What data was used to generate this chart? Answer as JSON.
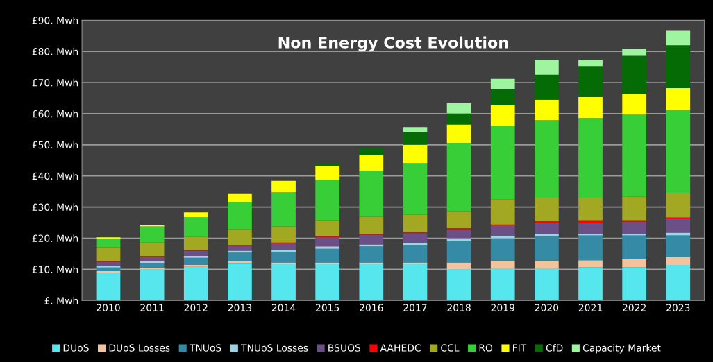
{
  "chart_data": {
    "type": "bar",
    "stacked": true,
    "title": "Non Energy Cost Evolution",
    "categories": [
      "2010",
      "2011",
      "2012",
      "2013",
      "2014",
      "2015",
      "2016",
      "2017",
      "2018",
      "2019",
      "2020",
      "2021",
      "2022",
      "2023"
    ],
    "series": [
      {
        "name": "DUoS",
        "color": "#55e6ee",
        "values": [
          8.8,
          10.0,
          10.8,
          12.0,
          11.8,
          11.8,
          11.8,
          11.8,
          10.0,
          10.3,
          10.3,
          10.7,
          10.7,
          11.4
        ]
      },
      {
        "name": "DUoS Losses",
        "color": "#f4c29c",
        "values": [
          0.6,
          0.6,
          0.6,
          0.6,
          0.4,
          0.4,
          0.4,
          0.4,
          2.2,
          2.5,
          2.5,
          2.2,
          2.6,
          2.6
        ]
      },
      {
        "name": "TNUoS",
        "color": "#358aa5",
        "values": [
          1.2,
          1.5,
          2.3,
          2.8,
          3.3,
          4.4,
          5.2,
          5.6,
          7.0,
          7.2,
          7.9,
          8.0,
          7.6,
          6.9
        ]
      },
      {
        "name": "TNUoS Losses",
        "color": "#9dd3e3",
        "values": [
          0.4,
          0.5,
          0.6,
          0.6,
          0.9,
          0.8,
          0.6,
          0.8,
          0.8,
          0.7,
          0.7,
          0.5,
          0.5,
          0.9
        ]
      },
      {
        "name": "BSUOS",
        "color": "#6b4f87",
        "values": [
          1.4,
          1.4,
          1.6,
          1.6,
          1.9,
          2.9,
          3.1,
          3.0,
          2.8,
          3.4,
          3.6,
          3.4,
          3.9,
          4.5
        ]
      },
      {
        "name": "AAHEDC",
        "color": "#ff0000",
        "values": [
          0.3,
          0.3,
          0.3,
          0.3,
          0.3,
          0.4,
          0.3,
          0.4,
          0.4,
          0.3,
          0.5,
          1.0,
          0.5,
          0.4
        ]
      },
      {
        "name": "CCL",
        "color": "#a3a822",
        "values": [
          4.4,
          4.3,
          4.2,
          5.0,
          5.2,
          5.1,
          5.5,
          5.5,
          5.5,
          8.0,
          7.5,
          7.2,
          7.5,
          7.8
        ]
      },
      {
        "name": "RO",
        "color": "#38ce38",
        "values": [
          2.8,
          5.2,
          6.4,
          8.8,
          11.0,
          12.9,
          14.8,
          16.6,
          21.9,
          23.6,
          25.0,
          25.6,
          26.4,
          26.7
        ]
      },
      {
        "name": "FIT",
        "color": "#ffff00",
        "values": [
          0.4,
          0.3,
          1.5,
          2.5,
          3.6,
          4.4,
          5.0,
          5.9,
          5.9,
          6.7,
          6.5,
          6.7,
          6.7,
          7.0
        ]
      },
      {
        "name": "CfD",
        "color": "#056b05",
        "values": [
          null,
          null,
          null,
          null,
          null,
          0.8,
          2.1,
          4.1,
          3.6,
          5.2,
          8.0,
          10.0,
          12.2,
          13.8
        ]
      },
      {
        "name": "Capacity Market",
        "color": "#9ff59f",
        "values": [
          null,
          null,
          null,
          null,
          null,
          null,
          null,
          1.6,
          3.3,
          3.3,
          4.8,
          2.0,
          2.2,
          4.8
        ]
      }
    ],
    "ylim": [
      0,
      90
    ],
    "yticks": [
      {
        "value": 0,
        "label": "£. Mwh"
      },
      {
        "value": 10,
        "label": "£10. Mwh"
      },
      {
        "value": 20,
        "label": "£20. Mwh"
      },
      {
        "value": 30,
        "label": "£30. Mwh"
      },
      {
        "value": 40,
        "label": "£40. Mwh"
      },
      {
        "value": 50,
        "label": "£50. Mwh"
      },
      {
        "value": 60,
        "label": "£60. Mwh"
      },
      {
        "value": 70,
        "label": "£70. Mwh"
      },
      {
        "value": 80,
        "label": "£80. Mwh"
      },
      {
        "value": 90,
        "label": "£90. Mwh"
      }
    ],
    "grid": "y",
    "legend": "bottom"
  }
}
